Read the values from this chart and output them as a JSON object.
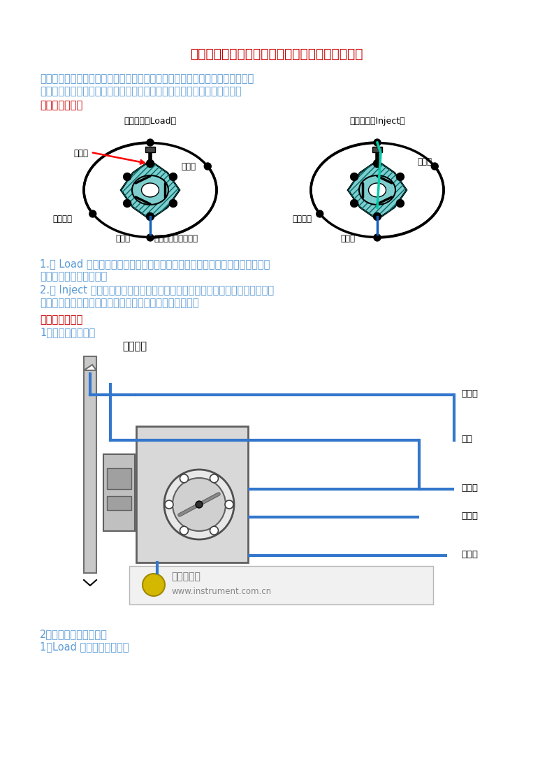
{
  "title": "液相色谱自动进样器和手动进样器工作原理之比较",
  "title_color": "#cc0000",
  "bg_color": "#ffffff",
  "intro_line1": "对于液相色谱而言，无论是手动进样器或是自动进样器都是用六通阀进样的，只",
  "intro_line2": "是自动进样的较手动进样器的死体积较大，多了计量泵和一部分联接管线。",
  "intro_color": "#5b9bd5",
  "section1_title": "一、六通阀原理",
  "section1_color": "#cc0000",
  "load_label": "充样位置（Load）",
  "inject_label": "进样位置（Inject）",
  "text_body_color": "#5b9bd5",
  "load_jinjizhen": "进样针",
  "load_feiyi": "至废液",
  "load_secol": "至色谱柱",
  "load_pump": "来自泵",
  "load_loop": "定量环（固定体积）",
  "inj_feiyi": "至废液",
  "inj_secol": "至色谱柱",
  "inj_pump": "来自泵",
  "para1_1": "1.在 Load 状态，样品从进样针进来到定量环，多余的样品再到废液；来自泵的",
  "para1_2": "流动相直接流到色谱柱。",
  "para2_1": "2.在 Inject 状态，进样位置直接连接至废液，也就是说此时如果有样品进来的话",
  "para2_2": "是直接流到废液的；来自泵的流动相经定量环再到色谱柱。",
  "section2_title": "二、手动进样器",
  "sub1_title": "1、实际流路连接图",
  "flow_label": "流向连接",
  "right_labels": [
    "样品环",
    "废液",
    "放空管",
    "样品环",
    "接柱子"
  ],
  "watermark1": "仪器信息网",
  "watermark2": "www.instrument.com.cn",
  "end_line1": "2、手动进样器工作原理",
  "end_line2": "1）Load 状态（充样位置）"
}
